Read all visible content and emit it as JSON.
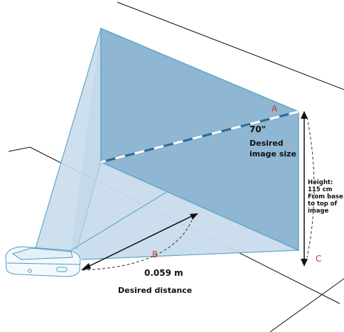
{
  "labels": {
    "point_a": "A",
    "point_b": "B",
    "point_c": "C",
    "image_size_value": "70\"",
    "image_size_caption_line1": "Desired",
    "image_size_caption_line2": "image size",
    "height_line1": "Height:",
    "height_line2": "115 cm",
    "height_line3": "From base",
    "height_line4": "to top of",
    "height_line5": "image",
    "distance_value": "0.059 m",
    "distance_caption": "Desired distance"
  },
  "colors": {
    "screen_fill": "#8fb6d2",
    "beam_fill": "#c9dcec",
    "beam_stroke": "#5fa8c9",
    "marker_red": "#c0392b",
    "line": "#111111"
  }
}
